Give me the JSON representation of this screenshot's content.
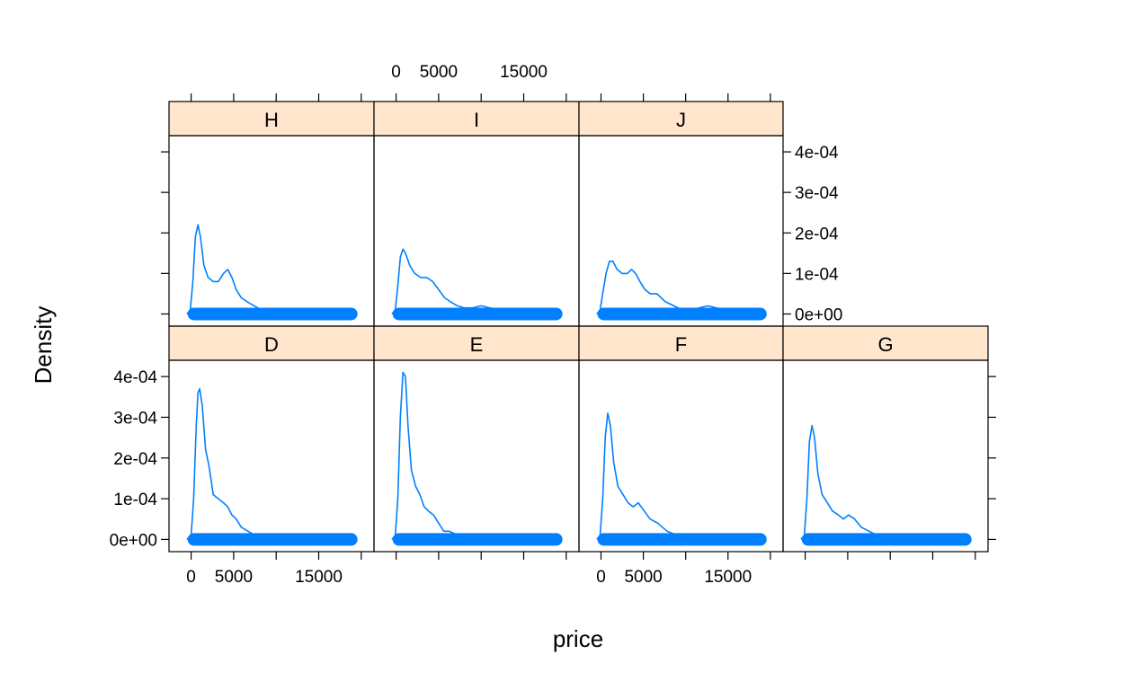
{
  "colors": {
    "strip_fill": "#ffe5cc",
    "curve": "#0080ff",
    "rug": "#0080ff",
    "frame": "#000000"
  },
  "axis_titles": {
    "x": "price",
    "y": "Density"
  },
  "chart_data": {
    "type": "line",
    "title": "",
    "xlabel": "price",
    "ylabel": "Density",
    "xlim": [
      -2600,
      21500
    ],
    "ylim": [
      -3e-05,
      0.00044
    ],
    "x_ticks": [
      0,
      5000,
      10000,
      15000,
      20000
    ],
    "x_tick_labels": [
      "0",
      "5000",
      "15000"
    ],
    "x_tick_label_values": [
      0,
      5000,
      15000
    ],
    "y_ticks": [
      0,
      0.0001,
      0.0002,
      0.0003,
      0.0004
    ],
    "y_tick_labels": [
      "0e+00",
      "1e-04",
      "2e-04",
      "3e-04",
      "4e-04"
    ],
    "rug_range": [
      326,
      18823
    ],
    "layout": "4 columns x 2 rows, bottom row D E F G, top row H I J",
    "panels": [
      {
        "name": "D",
        "x": [
          -500,
          0,
          300,
          600,
          800,
          1000,
          1300,
          1700,
          2100,
          2600,
          3200,
          3800,
          4300,
          4800,
          5300,
          5900,
          6700,
          7500,
          8500,
          10000,
          12000,
          14000,
          16000,
          18000,
          19500
        ],
        "y": [
          0,
          1e-05,
          0.0001,
          0.00028,
          0.00036,
          0.00037,
          0.00033,
          0.00022,
          0.00018,
          0.00011,
          0.0001,
          9e-05,
          8e-05,
          6e-05,
          5e-05,
          3e-05,
          2e-05,
          1e-05,
          5e-06,
          4e-06,
          3e-06,
          2e-06,
          2e-06,
          1e-06,
          0
        ]
      },
      {
        "name": "E",
        "x": [
          -500,
          -100,
          200,
          500,
          800,
          1100,
          1400,
          1800,
          2300,
          2800,
          3300,
          3800,
          4400,
          5000,
          5600,
          6200,
          6800,
          7500,
          8500,
          10000,
          12000,
          14000,
          16000,
          18000,
          19500
        ],
        "y": [
          0,
          1e-05,
          0.0001,
          0.0003,
          0.00041,
          0.0004,
          0.00028,
          0.00017,
          0.00013,
          0.00011,
          8e-05,
          7e-05,
          6e-05,
          4e-05,
          2e-05,
          2e-05,
          1.5e-05,
          1e-05,
          5e-06,
          4e-06,
          3e-06,
          2e-06,
          2e-06,
          1e-06,
          0
        ]
      },
      {
        "name": "F",
        "x": [
          -500,
          -100,
          200,
          500,
          800,
          1100,
          1500,
          2000,
          2600,
          3200,
          3800,
          4400,
          5100,
          5800,
          6700,
          7800,
          9000,
          10500,
          12500,
          14500,
          16500,
          18500,
          19500
        ],
        "y": [
          0,
          1e-05,
          0.0001,
          0.00025,
          0.00031,
          0.00028,
          0.00019,
          0.00013,
          0.00011,
          9e-05,
          8e-05,
          9e-05,
          7e-05,
          5e-05,
          4e-05,
          2e-05,
          1e-05,
          8e-06,
          6e-06,
          4e-06,
          3e-06,
          1e-06,
          0
        ]
      },
      {
        "name": "G",
        "x": [
          -500,
          -100,
          200,
          500,
          800,
          1100,
          1500,
          2000,
          2600,
          3200,
          3900,
          4500,
          5100,
          5800,
          6600,
          7500,
          8500,
          10000,
          12000,
          14000,
          16000,
          18000,
          19500
        ],
        "y": [
          0,
          1e-05,
          0.0001,
          0.00024,
          0.00028,
          0.00025,
          0.00016,
          0.00011,
          9e-05,
          7e-05,
          6e-05,
          5e-05,
          6e-05,
          5e-05,
          3e-05,
          2e-05,
          1e-05,
          7e-06,
          5e-06,
          4e-06,
          3e-06,
          1e-06,
          0
        ]
      },
      {
        "name": "H",
        "x": [
          -500,
          -100,
          200,
          500,
          800,
          1100,
          1500,
          2000,
          2600,
          3200,
          3800,
          4300,
          4800,
          5300,
          5900,
          6600,
          7400,
          8300,
          9300,
          10500,
          11500,
          13000,
          15000,
          17000,
          19500
        ],
        "y": [
          0,
          1e-05,
          8e-05,
          0.00019,
          0.00022,
          0.00019,
          0.00012,
          9e-05,
          8e-05,
          8e-05,
          0.0001,
          0.00011,
          9e-05,
          6e-05,
          4e-05,
          3e-05,
          2e-05,
          1e-05,
          8e-06,
          1e-05,
          1.2e-05,
          8e-06,
          5e-06,
          3e-06,
          0
        ]
      },
      {
        "name": "I",
        "x": [
          -500,
          -100,
          200,
          500,
          800,
          1100,
          1600,
          2200,
          2900,
          3600,
          4300,
          5000,
          5700,
          6400,
          7200,
          8000,
          9000,
          10000,
          11000,
          12500,
          14000,
          16000,
          17500,
          19500
        ],
        "y": [
          0,
          1e-05,
          7e-05,
          0.00014,
          0.00016,
          0.00015,
          0.00012,
          0.0001,
          9e-05,
          9e-05,
          8e-05,
          6e-05,
          4e-05,
          3e-05,
          2e-05,
          1.5e-05,
          1.5e-05,
          2e-05,
          1.5e-05,
          1e-05,
          8e-06,
          8e-06,
          5e-06,
          0
        ]
      },
      {
        "name": "J",
        "x": [
          -500,
          -100,
          200,
          600,
          1000,
          1400,
          1900,
          2500,
          3100,
          3600,
          4100,
          4600,
          5200,
          5800,
          6600,
          7600,
          8600,
          9600,
          10600,
          11600,
          12600,
          13600,
          15000,
          16500,
          18500,
          19500
        ],
        "y": [
          0,
          1e-05,
          5e-05,
          0.0001,
          0.00013,
          0.00013,
          0.00011,
          0.0001,
          0.0001,
          0.00011,
          0.0001,
          8e-05,
          6e-05,
          5e-05,
          5e-05,
          3e-05,
          2e-05,
          1e-05,
          1e-05,
          1.5e-05,
          2e-05,
          1.5e-05,
          1e-05,
          6e-06,
          3e-06,
          0
        ]
      }
    ]
  }
}
